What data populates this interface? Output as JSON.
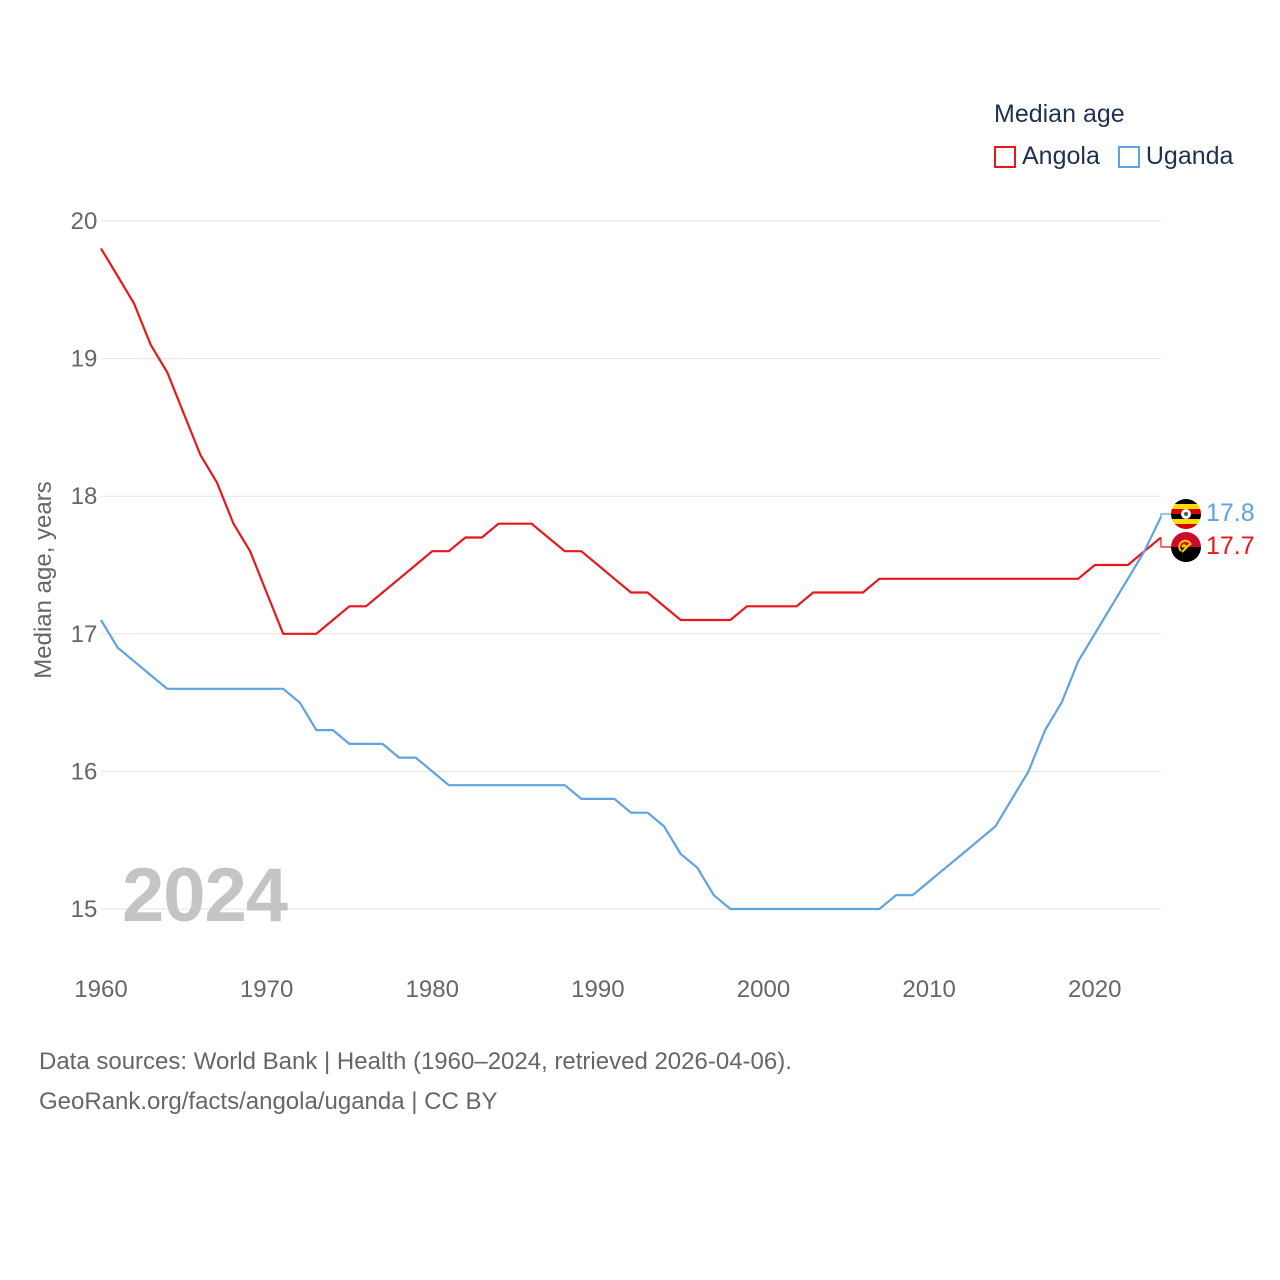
{
  "legend": {
    "title": "Median age",
    "items": [
      {
        "label": "Angola",
        "color": "#e8171b"
      },
      {
        "label": "Uganda",
        "color": "#5fa3e0"
      }
    ]
  },
  "watermark_year": "2024",
  "footer": {
    "line1": "Data sources: World Bank | Health (1960–2024, retrieved 2026-04-06).",
    "line2": "GeoRank.org/facts/angola/uganda | CC BY"
  },
  "chart_data": {
    "type": "line",
    "title": "Median age",
    "xlabel": "",
    "ylabel": "Median age, years",
    "xlim": [
      1960,
      2024
    ],
    "ylim": [
      14.5,
      20.2
    ],
    "x_ticks": [
      1960,
      1970,
      1980,
      1990,
      2000,
      2010,
      2020
    ],
    "y_ticks": [
      15,
      16,
      17,
      18,
      19,
      20
    ],
    "grid": true,
    "legend_position": "top-right",
    "x": [
      1960,
      1961,
      1962,
      1963,
      1964,
      1965,
      1966,
      1967,
      1968,
      1969,
      1970,
      1971,
      1972,
      1973,
      1974,
      1975,
      1976,
      1977,
      1978,
      1979,
      1980,
      1981,
      1982,
      1983,
      1984,
      1985,
      1986,
      1987,
      1988,
      1989,
      1990,
      1991,
      1992,
      1993,
      1994,
      1995,
      1996,
      1997,
      1998,
      1999,
      2000,
      2001,
      2002,
      2003,
      2004,
      2005,
      2006,
      2007,
      2008,
      2009,
      2010,
      2011,
      2012,
      2013,
      2014,
      2015,
      2016,
      2017,
      2018,
      2019,
      2020,
      2021,
      2022,
      2023,
      2024
    ],
    "series": [
      {
        "name": "Angola",
        "color": "#e8171b",
        "end_label": "17.7",
        "values": [
          19.8,
          19.6,
          19.4,
          19.1,
          18.9,
          18.6,
          18.3,
          18.1,
          17.8,
          17.6,
          17.3,
          17.0,
          17.0,
          17.0,
          17.1,
          17.2,
          17.2,
          17.3,
          17.4,
          17.5,
          17.6,
          17.6,
          17.7,
          17.7,
          17.8,
          17.8,
          17.8,
          17.7,
          17.6,
          17.6,
          17.5,
          17.4,
          17.3,
          17.3,
          17.2,
          17.1,
          17.1,
          17.1,
          17.1,
          17.2,
          17.2,
          17.2,
          17.2,
          17.3,
          17.3,
          17.3,
          17.3,
          17.4,
          17.4,
          17.4,
          17.4,
          17.4,
          17.4,
          17.4,
          17.4,
          17.4,
          17.4,
          17.4,
          17.4,
          17.4,
          17.5,
          17.5,
          17.5,
          17.6,
          17.7
        ]
      },
      {
        "name": "Uganda",
        "color": "#5fa3e0",
        "end_label": "17.8",
        "values": [
          17.1,
          16.9,
          16.8,
          16.7,
          16.6,
          16.6,
          16.6,
          16.6,
          16.6,
          16.6,
          16.6,
          16.6,
          16.5,
          16.3,
          16.3,
          16.2,
          16.2,
          16.2,
          16.1,
          16.1,
          16.0,
          15.9,
          15.9,
          15.9,
          15.9,
          15.9,
          15.9,
          15.9,
          15.9,
          15.8,
          15.8,
          15.8,
          15.7,
          15.7,
          15.6,
          15.4,
          15.3,
          15.1,
          15.0,
          15.0,
          15.0,
          15.0,
          15.0,
          15.0,
          15.0,
          15.0,
          15.0,
          15.0,
          15.1,
          15.1,
          15.2,
          15.3,
          15.4,
          15.5,
          15.6,
          15.8,
          16.0,
          16.3,
          16.5,
          16.8,
          17.0,
          17.2,
          17.4,
          17.6,
          17.85
        ]
      }
    ]
  }
}
